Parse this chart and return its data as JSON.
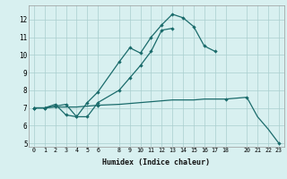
{
  "xlabel": "Humidex (Indice chaleur)",
  "bg_color": "#d8f0f0",
  "line_color": "#1a6b6b",
  "grid_color": "#aacece",
  "xlim": [
    -0.5,
    23.5
  ],
  "ylim": [
    4.8,
    12.8
  ],
  "yticks": [
    5,
    6,
    7,
    8,
    9,
    10,
    11,
    12
  ],
  "xticks": [
    0,
    1,
    2,
    3,
    4,
    5,
    6,
    8,
    9,
    10,
    11,
    12,
    13,
    14,
    15,
    16,
    17,
    18,
    20,
    21,
    22,
    23
  ],
  "curve1_x": [
    0,
    1,
    2,
    3,
    4,
    5,
    6,
    8,
    9,
    10,
    11,
    12,
    13,
    14,
    15,
    16,
    17
  ],
  "curve1_y": [
    7.0,
    7.0,
    7.2,
    6.6,
    6.5,
    7.3,
    7.9,
    9.6,
    10.4,
    10.1,
    11.0,
    11.7,
    12.3,
    12.1,
    11.6,
    10.5,
    10.2
  ],
  "curve2_x": [
    0,
    1,
    2,
    3,
    4,
    5,
    6,
    8,
    9,
    10,
    11,
    12,
    13
  ],
  "curve2_y": [
    7.0,
    7.0,
    7.1,
    7.2,
    6.5,
    6.5,
    7.3,
    8.0,
    8.7,
    9.4,
    10.2,
    11.4,
    11.5
  ],
  "curve3_x": [
    0,
    1,
    2,
    3,
    4,
    5,
    6,
    8,
    9,
    10,
    11,
    12,
    13,
    14,
    15,
    16,
    17,
    18,
    20,
    21,
    22,
    23
  ],
  "curve3_y": [
    7.0,
    7.0,
    7.05,
    7.05,
    7.05,
    7.1,
    7.15,
    7.2,
    7.25,
    7.3,
    7.35,
    7.4,
    7.45,
    7.45,
    7.45,
    7.5,
    7.5,
    7.5,
    7.6,
    6.5,
    5.8,
    5.0
  ],
  "markers3_x": [
    0,
    6,
    18,
    20,
    23
  ],
  "markers3_y": [
    7.0,
    7.15,
    7.5,
    7.6,
    5.0
  ]
}
